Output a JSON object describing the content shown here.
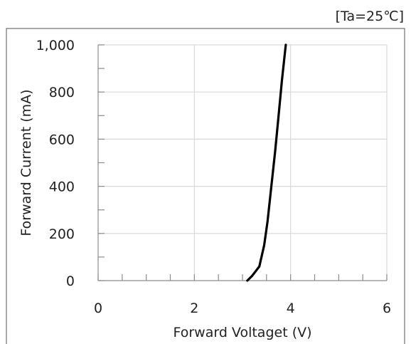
{
  "condition_label": "[Ta=25℃]",
  "chart_data": {
    "type": "line",
    "title": "",
    "xlabel": "Forward Voltaget (V)",
    "ylabel": "Forward Current (mA)",
    "xlim": [
      0,
      6
    ],
    "ylim": [
      0,
      1000
    ],
    "x_ticks": [
      0,
      2,
      4,
      6
    ],
    "x_tick_labels": [
      "0",
      "2",
      "4",
      "6"
    ],
    "y_ticks": [
      0,
      200,
      400,
      600,
      800,
      1000
    ],
    "y_tick_labels": [
      "0",
      "200",
      "400",
      "600",
      "800",
      "1,000"
    ],
    "grid": true,
    "series": [
      {
        "color": "#000000",
        "x": [
          3.1,
          3.2,
          3.35,
          3.45,
          3.52,
          3.6,
          3.68,
          3.75,
          3.82,
          3.9
        ],
        "y": [
          0,
          20,
          60,
          150,
          250,
          400,
          550,
          700,
          850,
          1000
        ]
      }
    ]
  }
}
